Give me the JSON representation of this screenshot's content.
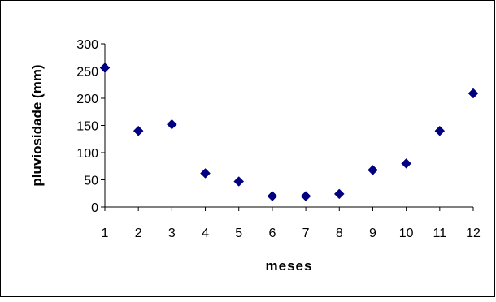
{
  "chart_data": {
    "type": "scatter",
    "title": "",
    "xlabel": "meses",
    "ylabel": "pluviosidade (mm)",
    "x": [
      1,
      2,
      3,
      4,
      5,
      6,
      7,
      8,
      9,
      10,
      11,
      12
    ],
    "y": [
      256,
      140,
      152,
      62,
      47,
      20,
      20,
      24,
      68,
      80,
      140,
      209
    ],
    "xlim": [
      1,
      12
    ],
    "ylim": [
      0,
      300
    ],
    "x_ticks": [
      "1",
      "2",
      "3",
      "4",
      "5",
      "6",
      "7",
      "8",
      "9",
      "10",
      "11",
      "12"
    ],
    "y_ticks": [
      "0",
      "50",
      "100",
      "150",
      "200",
      "250",
      "300"
    ],
    "grid": false,
    "legend": false,
    "marker": "diamond",
    "marker_color": "#000080",
    "axis_color": "#000000",
    "border_color": "#000000"
  }
}
